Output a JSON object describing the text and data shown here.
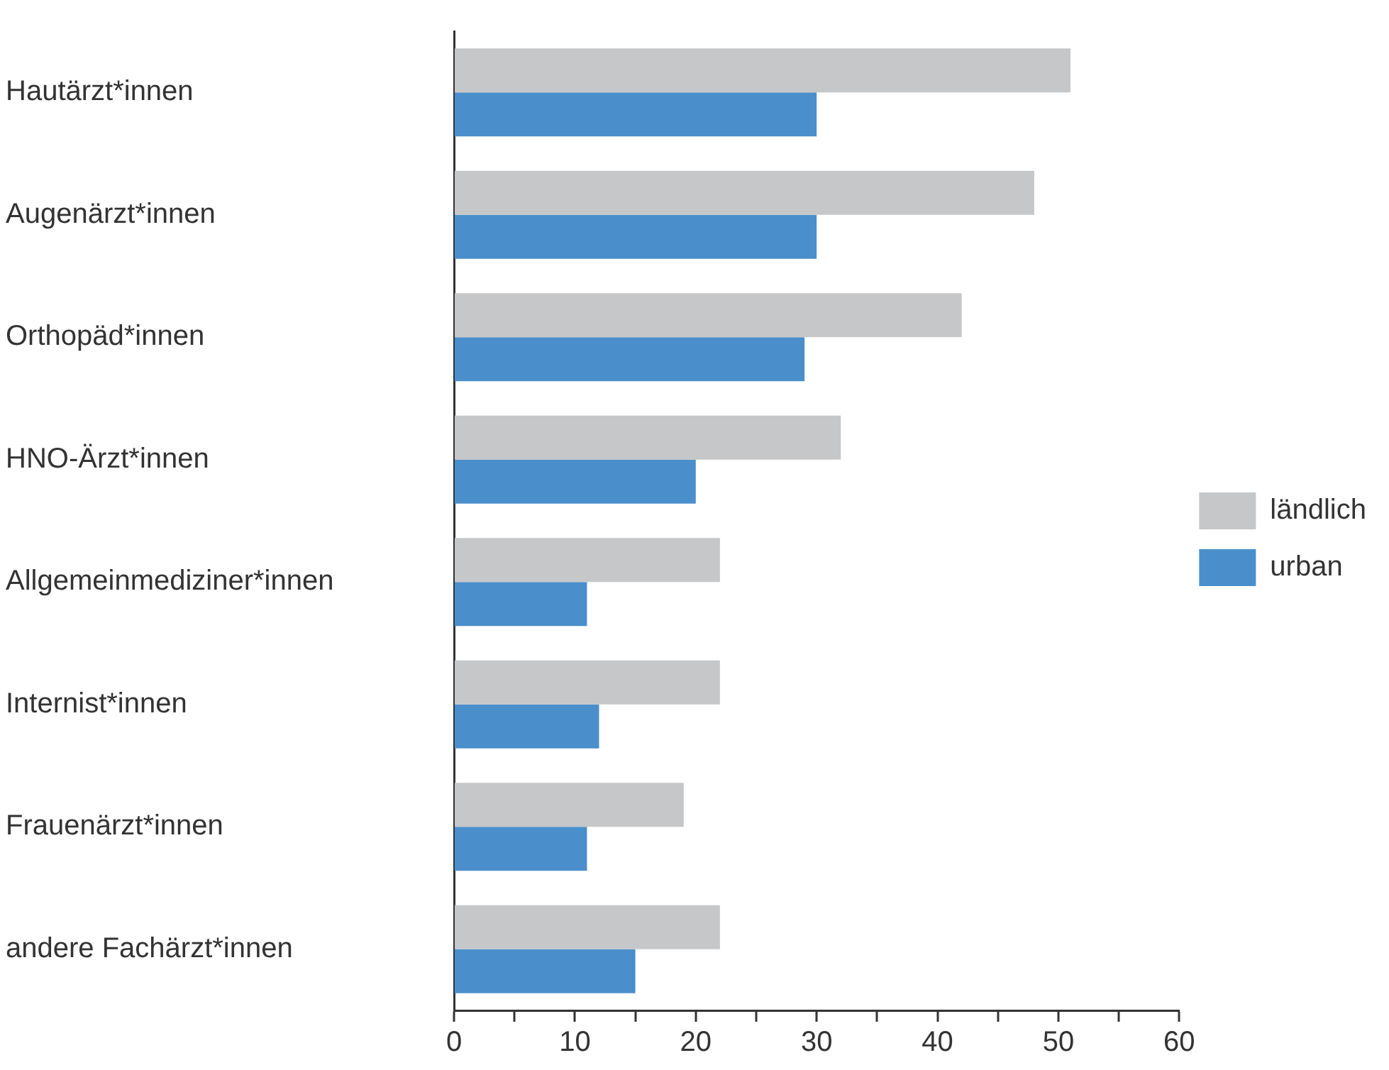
{
  "chart_data": {
    "type": "bar",
    "orientation": "horizontal",
    "categories": [
      "Hautärzt*innen",
      "Augenärzt*innen",
      "Orthopäd*innen",
      "HNO-Ärzt*innen",
      "Allgemeinmediziner*innen",
      "Internist*innen",
      "Frauenärzt*innen",
      "andere Fachärzt*innen"
    ],
    "series": [
      {
        "name": "ländlich",
        "color": "#c6c7c9",
        "values": [
          51,
          48,
          42,
          32,
          22,
          22,
          19,
          22
        ]
      },
      {
        "name": "urban",
        "color": "#4a8fcb",
        "values": [
          30,
          30,
          29,
          20,
          11,
          12,
          11,
          15
        ]
      }
    ],
    "xlim": [
      0,
      60
    ],
    "xticks": [
      0,
      {
        "value": 5,
        "label": null
      },
      10,
      {
        "value": 15,
        "label": null
      },
      20,
      {
        "value": 25,
        "label": null
      },
      30,
      {
        "value": 35,
        "label": null
      },
      40,
      {
        "value": 45,
        "label": null
      },
      50,
      {
        "value": 55,
        "label": null
      },
      60
    ],
    "grid": false,
    "legend": "right"
  }
}
